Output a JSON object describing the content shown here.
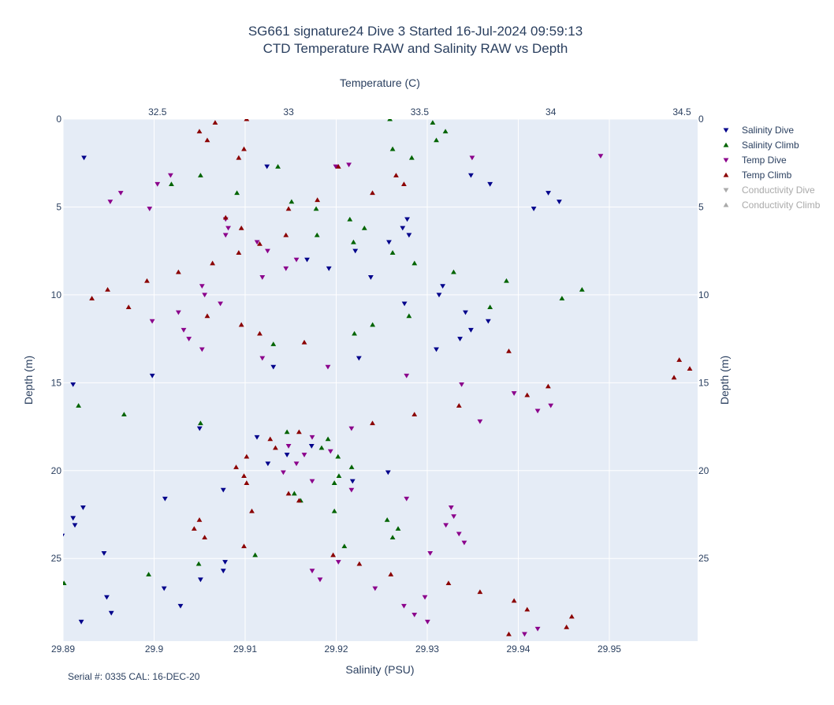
{
  "chart_data": {
    "type": "scatter",
    "title": "SG661 signature24 Dive 3 Started 16-Jul-2024 09:59:13",
    "subtitle": "CTD Temperature RAW and Salinity RAW vs Depth",
    "x_bottom_label": "Salinity (PSU)",
    "x_top_label": "Temperature (C)",
    "y_label": "Depth (m)",
    "x_bottom_range": [
      29.89,
      29.9597
    ],
    "x_top_range": [
      32.14,
      34.56
    ],
    "y_range": [
      0,
      29.7
    ],
    "y_reversed": true,
    "x_bottom_ticks": [
      "29.89",
      "29.9",
      "29.91",
      "29.92",
      "29.93",
      "29.94",
      "29.95"
    ],
    "x_top_ticks": [
      "32.5",
      "33",
      "33.5",
      "34",
      "34.5"
    ],
    "y_ticks": [
      "0",
      "5",
      "10",
      "15",
      "20",
      "25"
    ],
    "grid": true,
    "legend_position": "right",
    "footnote": "Serial #: 0335  CAL: 16-DEC-20",
    "series": [
      {
        "name": "Salinity Dive",
        "axis": "salinity",
        "marker": "triangle-down",
        "color": "#00008b",
        "visible": true,
        "points": [
          [
            29.8923,
            2.2
          ],
          [
            29.9124,
            2.7
          ],
          [
            29.9348,
            3.2
          ],
          [
            29.9369,
            3.7
          ],
          [
            29.9433,
            4.2
          ],
          [
            29.9445,
            4.7
          ],
          [
            29.9417,
            5.1
          ],
          [
            29.9278,
            5.7
          ],
          [
            29.9273,
            6.2
          ],
          [
            29.928,
            6.6
          ],
          [
            29.9258,
            7.0
          ],
          [
            29.9221,
            7.5
          ],
          [
            29.9168,
            8.0
          ],
          [
            29.9192,
            8.5
          ],
          [
            29.9238,
            9.0
          ],
          [
            29.9317,
            9.5
          ],
          [
            29.9313,
            10.0
          ],
          [
            29.9275,
            10.5
          ],
          [
            29.9342,
            11.0
          ],
          [
            29.9367,
            11.5
          ],
          [
            29.9348,
            12.0
          ],
          [
            29.9336,
            12.5
          ],
          [
            29.931,
            13.1
          ],
          [
            29.9225,
            13.6
          ],
          [
            29.9131,
            14.1
          ],
          [
            29.8998,
            14.6
          ],
          [
            29.8911,
            15.1
          ],
          [
            29.905,
            17.6
          ],
          [
            29.9113,
            18.1
          ],
          [
            29.9173,
            18.6
          ],
          [
            29.9146,
            19.1
          ],
          [
            29.9125,
            19.6
          ],
          [
            29.9257,
            20.1
          ],
          [
            29.9218,
            20.6
          ],
          [
            29.9076,
            21.1
          ],
          [
            29.9012,
            21.6
          ],
          [
            29.8922,
            22.1
          ],
          [
            29.8911,
            22.7
          ],
          [
            29.8913,
            23.1
          ],
          [
            29.8899,
            23.7
          ],
          [
            29.8896,
            24.2
          ],
          [
            29.8945,
            24.7
          ],
          [
            29.9078,
            25.2
          ],
          [
            29.9076,
            25.7
          ],
          [
            29.9051,
            26.2
          ],
          [
            29.9011,
            26.7
          ],
          [
            29.8948,
            27.2
          ],
          [
            29.9029,
            27.7
          ],
          [
            29.8953,
            28.1
          ],
          [
            29.892,
            28.6
          ]
        ]
      },
      {
        "name": "Salinity Climb",
        "axis": "salinity",
        "marker": "triangle-up",
        "color": "#006400",
        "visible": true,
        "points": [
          [
            29.9259,
            0.0
          ],
          [
            29.9306,
            0.2
          ],
          [
            29.932,
            0.7
          ],
          [
            29.931,
            1.2
          ],
          [
            29.9262,
            1.7
          ],
          [
            29.9283,
            2.2
          ],
          [
            29.9136,
            2.7
          ],
          [
            29.9051,
            3.2
          ],
          [
            29.9019,
            3.7
          ],
          [
            29.9091,
            4.2
          ],
          [
            29.9151,
            4.7
          ],
          [
            29.9178,
            5.1
          ],
          [
            29.9215,
            5.7
          ],
          [
            29.9231,
            6.2
          ],
          [
            29.9179,
            6.6
          ],
          [
            29.9219,
            7.0
          ],
          [
            29.9262,
            7.6
          ],
          [
            29.9286,
            8.2
          ],
          [
            29.9329,
            8.7
          ],
          [
            29.9387,
            9.2
          ],
          [
            29.947,
            9.7
          ],
          [
            29.9448,
            10.2
          ],
          [
            29.9369,
            10.7
          ],
          [
            29.928,
            11.2
          ],
          [
            29.924,
            11.7
          ],
          [
            29.922,
            12.2
          ],
          [
            29.9131,
            12.8
          ],
          [
            29.8917,
            16.3
          ],
          [
            29.8967,
            16.8
          ],
          [
            29.9051,
            17.3
          ],
          [
            29.9146,
            17.8
          ],
          [
            29.9191,
            18.2
          ],
          [
            29.9184,
            18.7
          ],
          [
            29.9202,
            19.2
          ],
          [
            29.9217,
            19.8
          ],
          [
            29.9203,
            20.3
          ],
          [
            29.9198,
            20.7
          ],
          [
            29.9154,
            21.3
          ],
          [
            29.9161,
            21.7
          ],
          [
            29.9198,
            22.3
          ],
          [
            29.9256,
            22.8
          ],
          [
            29.9268,
            23.3
          ],
          [
            29.9262,
            23.8
          ],
          [
            29.9209,
            24.3
          ],
          [
            29.9111,
            24.8
          ],
          [
            29.9049,
            25.3
          ],
          [
            29.8994,
            25.9
          ],
          [
            29.8901,
            26.4
          ]
        ]
      },
      {
        "name": "Temp Dive",
        "axis": "temperature",
        "marker": "triangle-down",
        "color": "#8b008b",
        "visible": true,
        "points": [
          [
            33.7,
            2.2
          ],
          [
            34.19,
            2.1
          ],
          [
            33.18,
            2.7
          ],
          [
            33.23,
            2.6
          ],
          [
            32.55,
            3.2
          ],
          [
            32.5,
            3.7
          ],
          [
            32.36,
            4.2
          ],
          [
            32.32,
            4.7
          ],
          [
            32.47,
            5.1
          ],
          [
            32.76,
            5.7
          ],
          [
            32.77,
            6.2
          ],
          [
            32.76,
            6.6
          ],
          [
            32.88,
            7.0
          ],
          [
            32.92,
            7.5
          ],
          [
            33.03,
            8.0
          ],
          [
            32.99,
            8.5
          ],
          [
            32.9,
            9.0
          ],
          [
            32.67,
            9.5
          ],
          [
            32.68,
            10.0
          ],
          [
            32.74,
            10.5
          ],
          [
            32.58,
            11.0
          ],
          [
            32.48,
            11.5
          ],
          [
            32.6,
            12.0
          ],
          [
            32.62,
            12.5
          ],
          [
            32.67,
            13.1
          ],
          [
            32.9,
            13.6
          ],
          [
            33.15,
            14.1
          ],
          [
            33.45,
            14.6
          ],
          [
            33.66,
            15.1
          ],
          [
            33.86,
            15.6
          ],
          [
            34.0,
            16.3
          ],
          [
            33.95,
            16.6
          ],
          [
            33.73,
            17.2
          ],
          [
            33.24,
            17.6
          ],
          [
            33.09,
            18.1
          ],
          [
            33.0,
            18.6
          ],
          [
            33.16,
            18.9
          ],
          [
            33.06,
            19.1
          ],
          [
            33.03,
            19.6
          ],
          [
            32.98,
            20.1
          ],
          [
            33.09,
            20.6
          ],
          [
            33.24,
            21.1
          ],
          [
            33.45,
            21.6
          ],
          [
            33.62,
            22.1
          ],
          [
            33.63,
            22.6
          ],
          [
            33.6,
            23.1
          ],
          [
            33.65,
            23.6
          ],
          [
            33.67,
            24.1
          ],
          [
            33.54,
            24.7
          ],
          [
            33.19,
            25.2
          ],
          [
            33.09,
            25.7
          ],
          [
            33.12,
            26.2
          ],
          [
            33.33,
            26.7
          ],
          [
            33.52,
            27.2
          ],
          [
            33.44,
            27.7
          ],
          [
            33.48,
            28.2
          ],
          [
            33.53,
            28.6
          ],
          [
            33.9,
            29.3
          ],
          [
            33.95,
            29.0
          ]
        ]
      },
      {
        "name": "Temp Climb",
        "axis": "temperature",
        "marker": "triangle-up",
        "color": "#8b0000",
        "visible": true,
        "points": [
          [
            32.72,
            0.2
          ],
          [
            32.84,
            0.0
          ],
          [
            32.66,
            0.7
          ],
          [
            32.69,
            1.2
          ],
          [
            32.83,
            1.7
          ],
          [
            32.81,
            2.2
          ],
          [
            33.19,
            2.7
          ],
          [
            33.41,
            3.2
          ],
          [
            33.44,
            3.7
          ],
          [
            33.32,
            4.2
          ],
          [
            33.11,
            4.6
          ],
          [
            33.0,
            5.1
          ],
          [
            32.76,
            5.6
          ],
          [
            32.82,
            6.2
          ],
          [
            32.99,
            6.6
          ],
          [
            32.89,
            7.1
          ],
          [
            32.81,
            7.6
          ],
          [
            32.71,
            8.2
          ],
          [
            32.58,
            8.7
          ],
          [
            32.46,
            9.2
          ],
          [
            32.31,
            9.7
          ],
          [
            32.25,
            10.2
          ],
          [
            32.39,
            10.7
          ],
          [
            32.69,
            11.2
          ],
          [
            32.82,
            11.7
          ],
          [
            32.89,
            12.2
          ],
          [
            33.06,
            12.7
          ],
          [
            33.84,
            13.2
          ],
          [
            34.49,
            13.7
          ],
          [
            34.53,
            14.2
          ],
          [
            34.47,
            14.7
          ],
          [
            33.99,
            15.2
          ],
          [
            33.91,
            15.7
          ],
          [
            33.65,
            16.3
          ],
          [
            33.48,
            16.8
          ],
          [
            33.32,
            17.3
          ],
          [
            33.04,
            17.8
          ],
          [
            32.93,
            18.2
          ],
          [
            32.95,
            18.7
          ],
          [
            32.84,
            19.2
          ],
          [
            32.8,
            19.8
          ],
          [
            32.83,
            20.3
          ],
          [
            32.84,
            20.7
          ],
          [
            33.0,
            21.3
          ],
          [
            33.04,
            21.7
          ],
          [
            32.86,
            22.3
          ],
          [
            32.66,
            22.8
          ],
          [
            32.64,
            23.3
          ],
          [
            32.68,
            23.8
          ],
          [
            32.83,
            24.3
          ],
          [
            33.17,
            24.8
          ],
          [
            33.27,
            25.3
          ],
          [
            33.39,
            25.9
          ],
          [
            33.61,
            26.4
          ],
          [
            33.73,
            26.9
          ],
          [
            33.86,
            27.4
          ],
          [
            33.91,
            27.9
          ],
          [
            34.08,
            28.3
          ],
          [
            34.06,
            28.9
          ],
          [
            33.84,
            29.3
          ]
        ]
      },
      {
        "name": "Conductivity Dive",
        "axis": "none",
        "marker": "triangle-down",
        "color": "#aaaaaa",
        "visible": false,
        "points": []
      },
      {
        "name": "Conductivity Climb",
        "axis": "none",
        "marker": "triangle-up",
        "color": "#aaaaaa",
        "visible": false,
        "points": []
      }
    ]
  }
}
